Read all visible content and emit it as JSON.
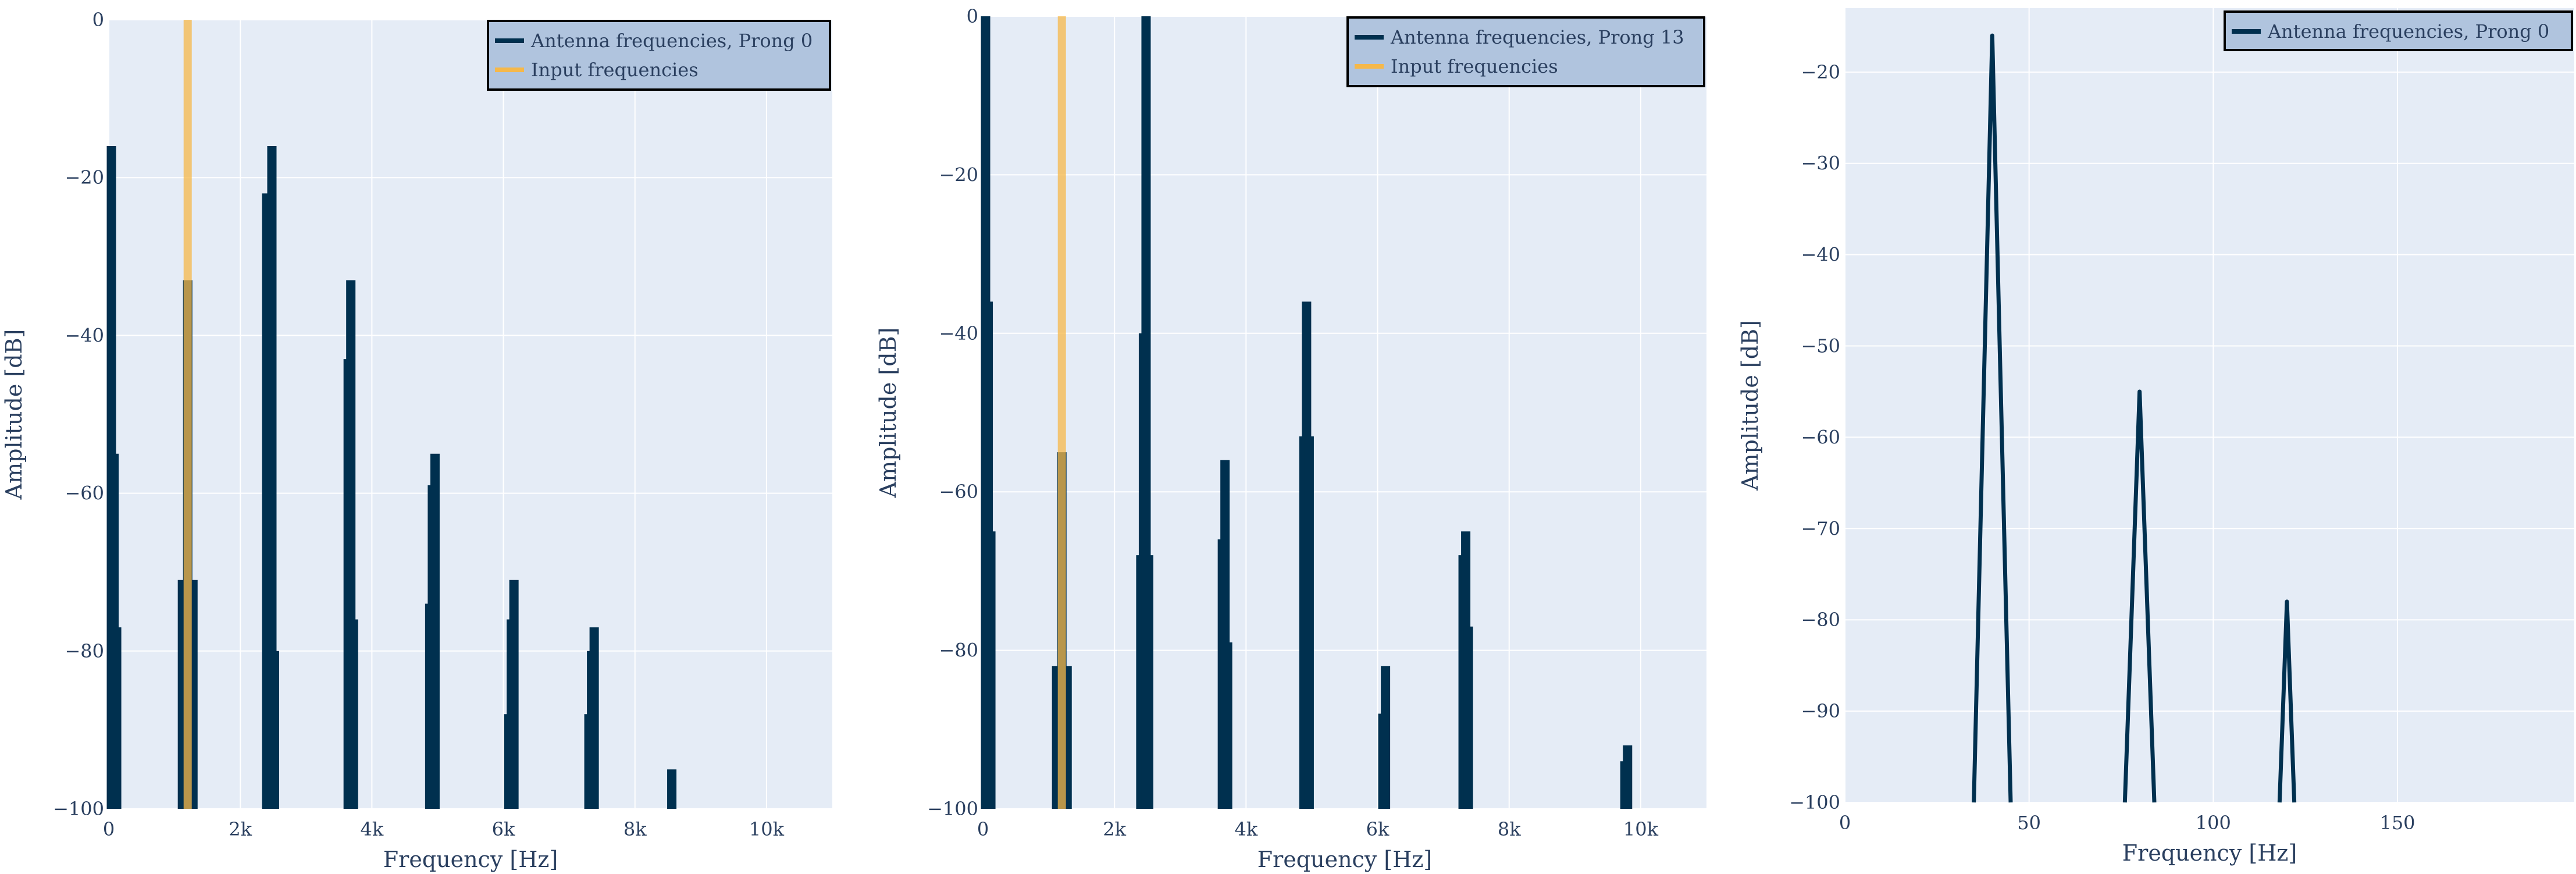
{
  "colors": {
    "plot_bg": "#e5ecf6",
    "grid": "#ffffff",
    "axis_text": "#2a3f5f",
    "antenna": "#00304f",
    "input": "#f5b84a",
    "legend_bg": "#b0c4de",
    "legend_border": "#000000"
  },
  "chart_data": [
    {
      "type": "line",
      "title": "",
      "xlabel": "Frequency [Hz]",
      "ylabel": "Amplitude [dB]",
      "xlim": [
        0,
        11000
      ],
      "ylim": [
        -100,
        0
      ],
      "x_ticks": [
        0,
        2000,
        4000,
        6000,
        8000,
        10000
      ],
      "x_tick_labels": [
        "0",
        "2k",
        "4k",
        "6k",
        "8k",
        "10k"
      ],
      "y_ticks": [
        0,
        -20,
        -40,
        -60,
        -80,
        -100
      ],
      "y_tick_labels": [
        "0",
        "−20",
        "−40",
        "−60",
        "−80",
        "−100"
      ],
      "grid": true,
      "legend_position": "top-right",
      "series": [
        {
          "name": "Antenna frequencies, Prong 0",
          "color": "#00304f",
          "style": "peaks",
          "peaks": [
            {
              "x": 40,
              "y": -16
            },
            {
              "x": 80,
              "y": -55
            },
            {
              "x": 120,
              "y": -77
            },
            {
              "x": 1120,
              "y": -71
            },
            {
              "x": 1200,
              "y": -33
            },
            {
              "x": 1280,
              "y": -71
            },
            {
              "x": 2400,
              "y": -22
            },
            {
              "x": 2440,
              "y": -59
            },
            {
              "x": 2480,
              "y": -16
            },
            {
              "x": 2520,
              "y": -80
            },
            {
              "x": 3640,
              "y": -43
            },
            {
              "x": 3680,
              "y": -33
            },
            {
              "x": 3720,
              "y": -76
            },
            {
              "x": 4880,
              "y": -74
            },
            {
              "x": 4920,
              "y": -59
            },
            {
              "x": 4960,
              "y": -55
            },
            {
              "x": 6080,
              "y": -88
            },
            {
              "x": 6120,
              "y": -76
            },
            {
              "x": 6160,
              "y": -71
            },
            {
              "x": 7300,
              "y": -88
            },
            {
              "x": 7340,
              "y": -80
            },
            {
              "x": 7380,
              "y": -77
            },
            {
              "x": 8560,
              "y": -95
            }
          ]
        },
        {
          "name": "Input frequencies",
          "color": "#f5b84a",
          "style": "peaks",
          "peaks": [
            {
              "x": 1200,
              "y": 0
            }
          ]
        }
      ]
    },
    {
      "type": "line",
      "title": "",
      "xlabel": "Frequency [Hz]",
      "ylabel": "Amplitude [dB]",
      "xlim": [
        0,
        11000
      ],
      "ylim": [
        -100,
        0
      ],
      "x_ticks": [
        0,
        2000,
        4000,
        6000,
        8000,
        10000
      ],
      "x_tick_labels": [
        "0",
        "2k",
        "4k",
        "6k",
        "8k",
        "10k"
      ],
      "y_ticks": [
        0,
        -20,
        -40,
        -60,
        -80,
        -100
      ],
      "y_tick_labels": [
        "0",
        "−20",
        "−40",
        "−60",
        "−80",
        "−100"
      ],
      "grid": true,
      "legend_position": "top-right",
      "series": [
        {
          "name": "Antenna frequencies, Prong 13",
          "color": "#00304f",
          "style": "peaks",
          "peaks": [
            {
              "x": 40,
              "y": 0
            },
            {
              "x": 80,
              "y": -36
            },
            {
              "x": 120,
              "y": -65
            },
            {
              "x": 1120,
              "y": -82
            },
            {
              "x": 1200,
              "y": -55
            },
            {
              "x": 1280,
              "y": -82
            },
            {
              "x": 2400,
              "y": -68
            },
            {
              "x": 2440,
              "y": -40
            },
            {
              "x": 2480,
              "y": 0
            },
            {
              "x": 2520,
              "y": -68
            },
            {
              "x": 3640,
              "y": -66
            },
            {
              "x": 3680,
              "y": -56
            },
            {
              "x": 3720,
              "y": -79
            },
            {
              "x": 4880,
              "y": -53
            },
            {
              "x": 4920,
              "y": -36
            },
            {
              "x": 4960,
              "y": -53
            },
            {
              "x": 6080,
              "y": -88
            },
            {
              "x": 6120,
              "y": -82
            },
            {
              "x": 7300,
              "y": -68
            },
            {
              "x": 7340,
              "y": -65
            },
            {
              "x": 7380,
              "y": -77
            },
            {
              "x": 9760,
              "y": -94
            },
            {
              "x": 9800,
              "y": -92
            }
          ]
        },
        {
          "name": "Input frequencies",
          "color": "#f5b84a",
          "style": "peaks",
          "peaks": [
            {
              "x": 1200,
              "y": 0
            }
          ]
        }
      ]
    },
    {
      "type": "line",
      "title": "",
      "xlabel": "Frequency [Hz]",
      "ylabel": "Amplitude [dB]",
      "xlim": [
        0,
        198
      ],
      "ylim": [
        -100,
        -13
      ],
      "x_ticks": [
        0,
        50,
        100,
        150
      ],
      "x_tick_labels": [
        "0",
        "50",
        "100",
        "150"
      ],
      "y_ticks": [
        -20,
        -30,
        -40,
        -50,
        -60,
        -70,
        -80,
        -90,
        -100
      ],
      "y_tick_labels": [
        "−20",
        "−30",
        "−40",
        "−50",
        "−60",
        "−70",
        "−80",
        "−90",
        "−100"
      ],
      "grid": true,
      "legend_position": "top-right",
      "series": [
        {
          "name": "Antenna frequencies, Prong 0",
          "color": "#00304f",
          "style": "polyline",
          "x": [
            35,
            40,
            45,
            null,
            76,
            80,
            84,
            null,
            118,
            120,
            122
          ],
          "y": [
            -100,
            -16,
            -100,
            null,
            -100,
            -55,
            -100,
            null,
            -100,
            -78,
            -100
          ]
        }
      ]
    }
  ]
}
